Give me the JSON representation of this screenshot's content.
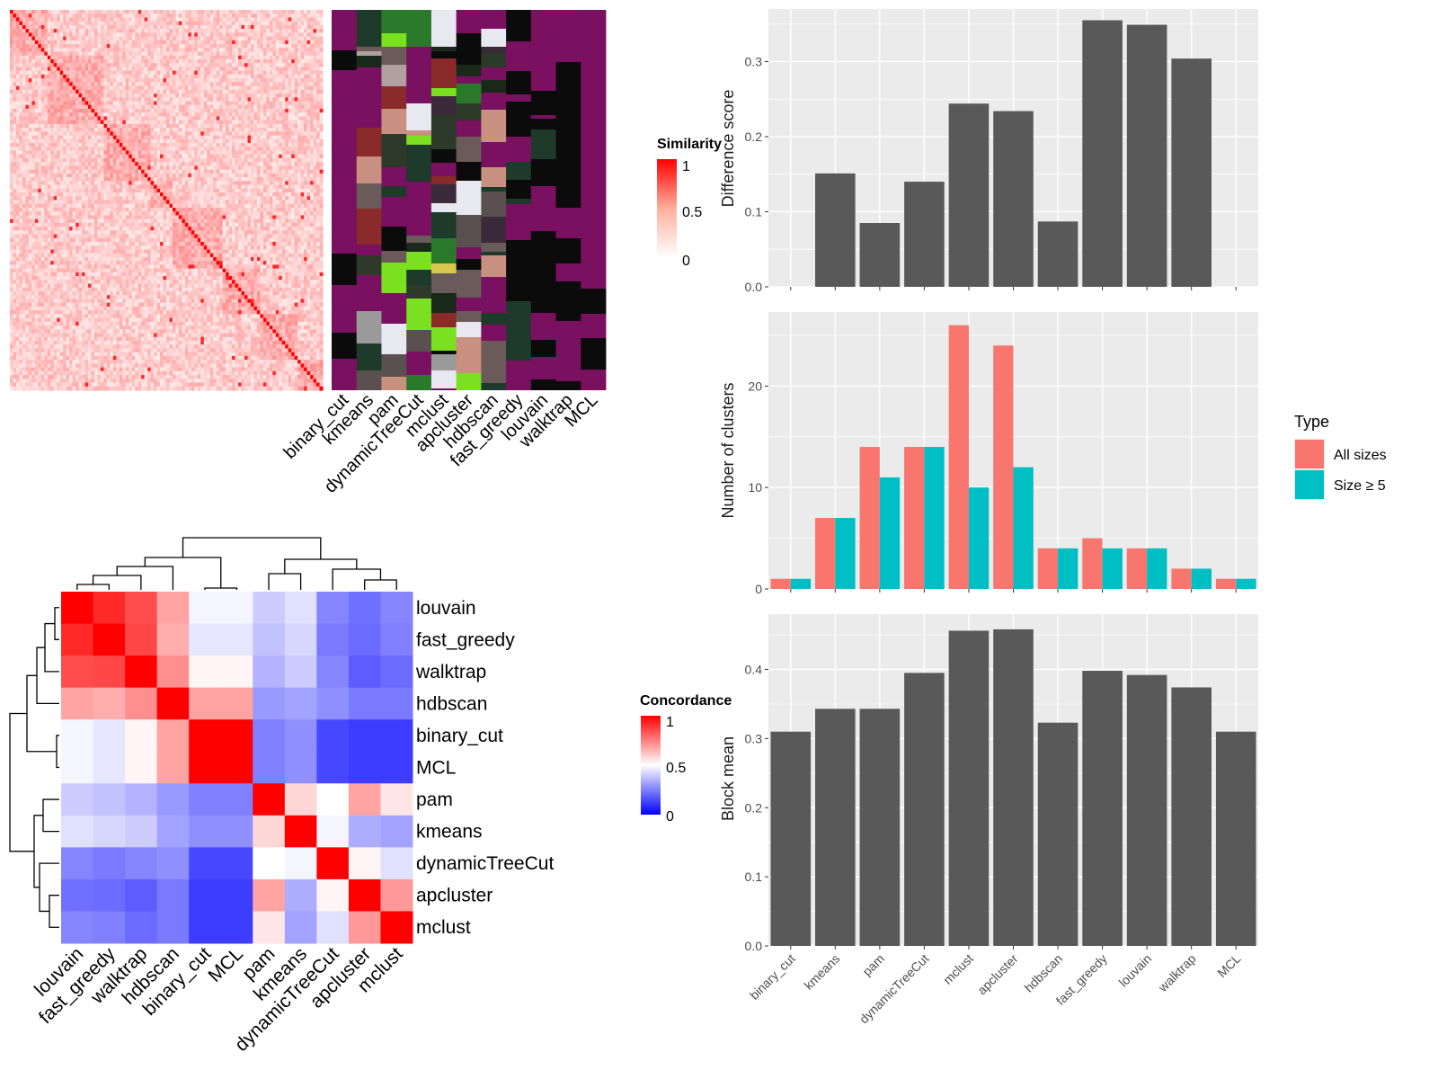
{
  "methods": [
    "binary_cut",
    "kmeans",
    "pam",
    "dynamicTreeCut",
    "mclust",
    "apcluster",
    "hdbscan",
    "fast_greedy",
    "louvain",
    "walktrap",
    "MCL"
  ],
  "sim_legend": {
    "title": "Similarity",
    "ticks": [
      "1",
      "0.5",
      "0"
    ]
  },
  "conc_legend": {
    "title": "Concordance",
    "ticks": [
      "1",
      "0.5",
      "0"
    ]
  },
  "type_legend": {
    "title": "Type",
    "items": [
      "All sizes",
      "Size ≥ 5"
    ]
  },
  "colors": {
    "allSizes": "#F8766D",
    "size5": "#00BFC4",
    "bar": "#595959",
    "panel": "#EBEBEB"
  },
  "chart_data": [
    {
      "type": "heatmap",
      "name": "similarity-heatmap",
      "note": "term similarity matrix with per-method cluster assignment strips",
      "column_labels": [
        "binary_cut",
        "kmeans",
        "pam",
        "dynamicTreeCut",
        "mclust",
        "apcluster",
        "hdbscan",
        "fast_greedy",
        "louvain",
        "walktrap",
        "MCL"
      ],
      "value_range": [
        0,
        1
      ]
    },
    {
      "type": "heatmap",
      "name": "concordance-heatmap",
      "rows": [
        "louvain",
        "fast_greedy",
        "walktrap",
        "hdbscan",
        "binary_cut",
        "MCL",
        "pam",
        "kmeans",
        "dynamicTreeCut",
        "apcluster",
        "mclust"
      ],
      "columns": [
        "louvain",
        "fast_greedy",
        "walktrap",
        "hdbscan",
        "binary_cut",
        "MCL",
        "pam",
        "kmeans",
        "dynamicTreeCut",
        "apcluster",
        "mclust"
      ],
      "value_range": [
        0,
        1
      ],
      "values": [
        [
          1.0,
          0.92,
          0.85,
          0.68,
          0.48,
          0.48,
          0.4,
          0.44,
          0.26,
          0.22,
          0.26
        ],
        [
          0.92,
          1.0,
          0.86,
          0.66,
          0.45,
          0.45,
          0.38,
          0.42,
          0.24,
          0.21,
          0.25
        ],
        [
          0.85,
          0.86,
          1.0,
          0.72,
          0.52,
          0.52,
          0.35,
          0.4,
          0.26,
          0.18,
          0.21
        ],
        [
          0.68,
          0.66,
          0.72,
          1.0,
          0.68,
          0.68,
          0.3,
          0.32,
          0.28,
          0.24,
          0.24
        ],
        [
          0.48,
          0.45,
          0.52,
          0.68,
          1.0,
          1.0,
          0.25,
          0.28,
          0.14,
          0.12,
          0.12
        ],
        [
          0.48,
          0.45,
          0.52,
          0.68,
          1.0,
          1.0,
          0.25,
          0.28,
          0.14,
          0.12,
          0.12
        ],
        [
          0.4,
          0.38,
          0.35,
          0.3,
          0.25,
          0.25,
          1.0,
          0.58,
          0.5,
          0.68,
          0.55
        ],
        [
          0.44,
          0.42,
          0.4,
          0.32,
          0.28,
          0.28,
          0.58,
          1.0,
          0.48,
          0.34,
          0.32
        ],
        [
          0.26,
          0.24,
          0.26,
          0.28,
          0.14,
          0.14,
          0.5,
          0.48,
          1.0,
          0.52,
          0.44
        ],
        [
          0.22,
          0.21,
          0.18,
          0.24,
          0.12,
          0.12,
          0.68,
          0.34,
          0.52,
          1.0,
          0.7
        ],
        [
          0.26,
          0.25,
          0.21,
          0.24,
          0.12,
          0.12,
          0.55,
          0.32,
          0.44,
          0.7,
          1.0
        ]
      ]
    },
    {
      "type": "bar",
      "categories": [
        "binary_cut",
        "kmeans",
        "pam",
        "dynamicTreeCut",
        "mclust",
        "apcluster",
        "hdbscan",
        "fast_greedy",
        "louvain",
        "walktrap",
        "MCL"
      ],
      "values": [
        0.0,
        0.151,
        0.085,
        0.14,
        0.244,
        0.234,
        0.087,
        0.355,
        0.349,
        0.304,
        0.0
      ],
      "ylabel": "Difference score",
      "ylim": [
        0,
        0.37
      ],
      "yticks": [
        0.0,
        0.1,
        0.2,
        0.3
      ],
      "grid": true
    },
    {
      "type": "bar",
      "categories": [
        "binary_cut",
        "kmeans",
        "pam",
        "dynamicTreeCut",
        "mclust",
        "apcluster",
        "hdbscan",
        "fast_greedy",
        "louvain",
        "walktrap",
        "MCL"
      ],
      "series": [
        {
          "name": "All sizes",
          "values": [
            1,
            7,
            14,
            14,
            26,
            24,
            4,
            5,
            4,
            2,
            1
          ]
        },
        {
          "name": "Size ≥ 5",
          "values": [
            1,
            7,
            11,
            14,
            10,
            12,
            4,
            4,
            4,
            2,
            1
          ]
        }
      ],
      "ylabel": "Number of clusters",
      "ylim": [
        0,
        27.3
      ],
      "yticks": [
        0,
        10,
        20
      ],
      "legend": "right",
      "grid": true
    },
    {
      "type": "bar",
      "categories": [
        "binary_cut",
        "kmeans",
        "pam",
        "dynamicTreeCut",
        "mclust",
        "apcluster",
        "hdbscan",
        "fast_greedy",
        "louvain",
        "walktrap",
        "MCL"
      ],
      "values": [
        0.31,
        0.343,
        0.343,
        0.395,
        0.456,
        0.458,
        0.323,
        0.398,
        0.392,
        0.374,
        0.31
      ],
      "ylabel": "Block mean",
      "ylim": [
        0,
        0.48
      ],
      "yticks": [
        0.0,
        0.1,
        0.2,
        0.3,
        0.4
      ],
      "grid": true
    }
  ]
}
